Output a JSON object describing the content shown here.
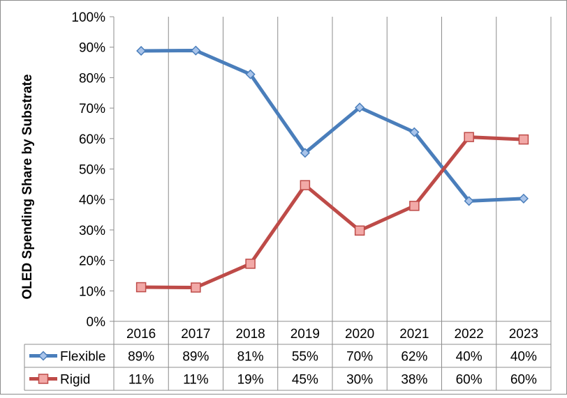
{
  "chart_data": {
    "type": "line",
    "ylabel": "OLED Spending Share by Substrate",
    "categories": [
      "2016",
      "2017",
      "2018",
      "2019",
      "2020",
      "2021",
      "2022",
      "2023"
    ],
    "ylim": [
      0,
      100
    ],
    "y_ticks": [
      "0%",
      "10%",
      "20%",
      "30%",
      "40%",
      "50%",
      "60%",
      "70%",
      "80%",
      "90%",
      "100%"
    ],
    "grid": "vertical",
    "legend": "data-table-bottom",
    "series": [
      {
        "name": "Flexible",
        "color": "#4a7ebb",
        "marker": "diamond",
        "values": [
          88.8,
          88.9,
          81.1,
          55.3,
          70.2,
          62.1,
          39.5,
          40.3
        ],
        "table_labels": [
          "89%",
          "89%",
          "81%",
          "55%",
          "70%",
          "62%",
          "40%",
          "40%"
        ]
      },
      {
        "name": "Rigid",
        "color": "#be4b48",
        "marker": "square",
        "values": [
          11.2,
          11.1,
          18.9,
          44.7,
          29.8,
          37.9,
          60.5,
          59.7
        ],
        "table_labels": [
          "11%",
          "11%",
          "19%",
          "45%",
          "30%",
          "38%",
          "60%",
          "60%"
        ]
      }
    ]
  }
}
